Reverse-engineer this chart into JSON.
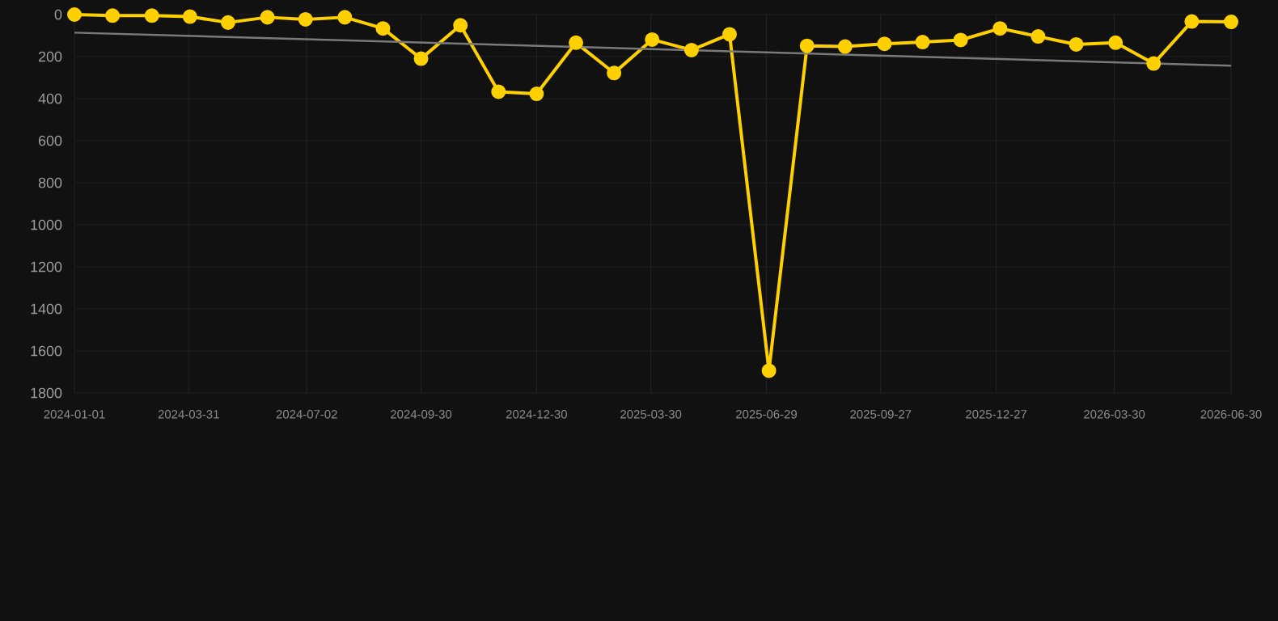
{
  "chart_data": {
    "type": "line",
    "x": [
      "2024-01-01",
      "2024-01-31",
      "2024-03-02",
      "2024-04-01",
      "2024-05-01",
      "2024-06-01",
      "2024-07-01",
      "2024-08-01",
      "2024-08-31",
      "2024-09-30",
      "2024-10-31",
      "2024-11-30",
      "2024-12-30",
      "2025-01-30",
      "2025-03-01",
      "2025-03-31",
      "2025-05-01",
      "2025-05-31",
      "2025-07-01",
      "2025-07-31",
      "2025-08-30",
      "2025-09-30",
      "2025-10-30",
      "2025-11-29",
      "2025-12-30",
      "2026-01-29",
      "2026-02-28",
      "2026-03-31",
      "2026-04-30",
      "2026-05-30",
      "2026-06-30"
    ],
    "series": [
      {
        "color": "#ffd000",
        "values": [
          0,
          5,
          5,
          10,
          38,
          13,
          23,
          13,
          66,
          210,
          51,
          367,
          377,
          134,
          278,
          119,
          169,
          94,
          1694,
          149,
          152,
          139,
          131,
          121,
          66,
          104,
          142,
          134,
          233,
          33,
          35
        ]
      },
      {
        "type": "line",
        "color": "#7a7a7a",
        "marker": "none",
        "x": [
          "2024-01-01",
          "2026-06-30"
        ],
        "values": [
          86,
          243
        ]
      }
    ],
    "xlim": [
      "2024-01-01",
      "2026-06-30"
    ],
    "xticks": [
      "2024-01-01",
      "2024-03-31",
      "2024-07-02",
      "2024-09-30",
      "2024-12-30",
      "2025-03-30",
      "2025-06-29",
      "2025-09-27",
      "2025-12-27",
      "2026-03-30",
      "2026-06-30"
    ],
    "ylim": [
      1800,
      0
    ],
    "yticks": [
      0,
      200,
      400,
      600,
      800,
      1000,
      1200,
      1400,
      1600,
      1800
    ],
    "grid": true,
    "marker": "circle"
  }
}
